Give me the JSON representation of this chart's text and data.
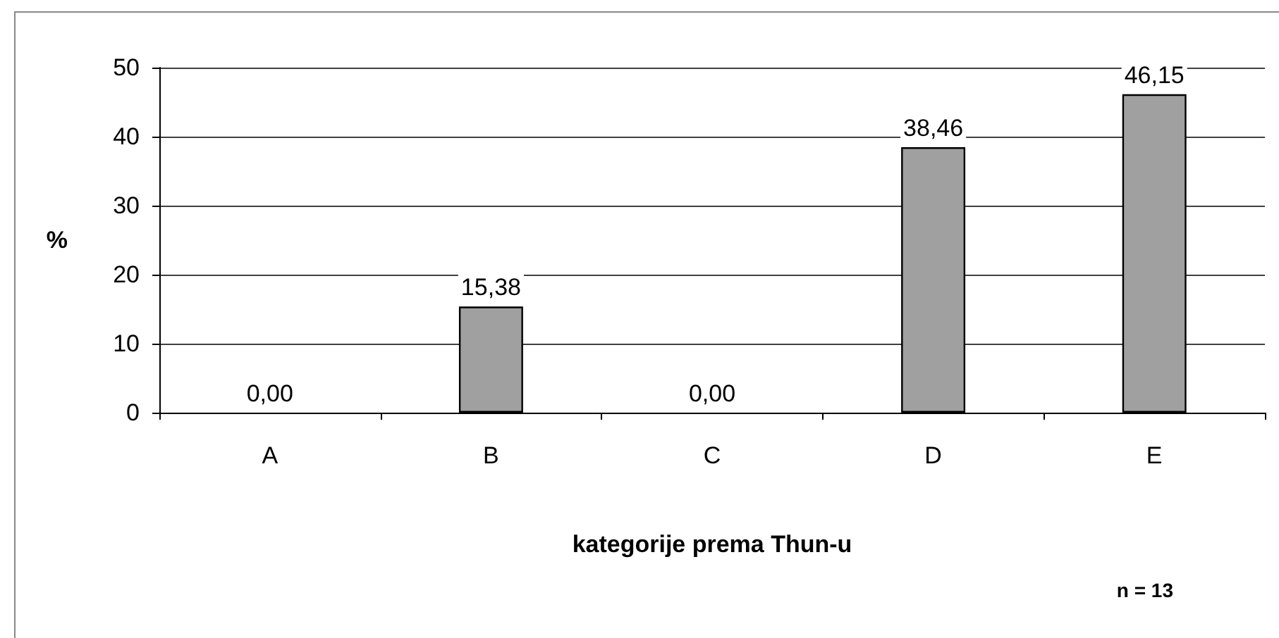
{
  "chart_data": {
    "type": "bar",
    "xlabel": "kategorije prema Thun-u",
    "ylabel": "%",
    "categories": [
      "A",
      "B",
      "C",
      "D",
      "E"
    ],
    "values": [
      0,
      15.38,
      0,
      38.46,
      46.15
    ],
    "value_labels": [
      "0,00",
      "15,38",
      "0,00",
      "38,46",
      "46,15"
    ],
    "color": "#a0a0a0",
    "ylim": [
      0,
      50
    ],
    "yticks": [
      0,
      10,
      20,
      30,
      40,
      50
    ],
    "grid": "y",
    "annotations": [
      "n = 13"
    ]
  }
}
